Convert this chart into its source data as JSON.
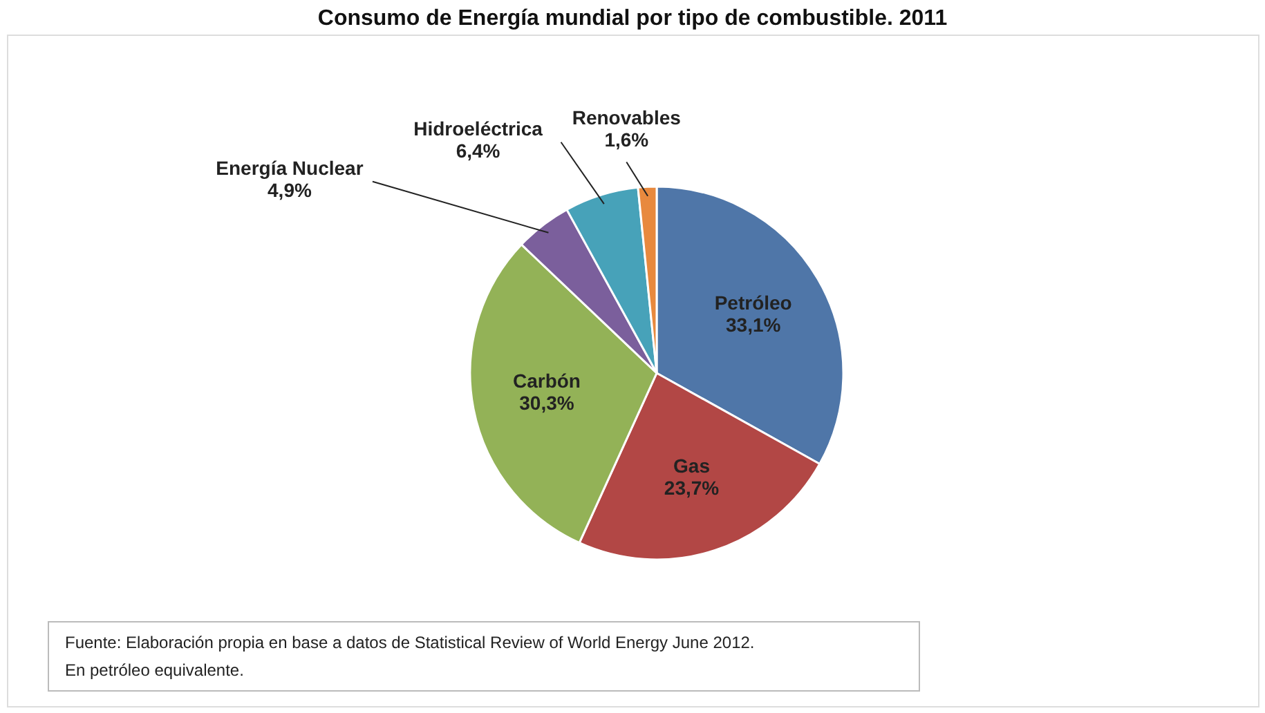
{
  "chart_data": {
    "type": "pie",
    "title": "Consumo de Energía mundial por tipo de combustible. 2011",
    "categories": [
      "Petróleo",
      "Gas",
      "Carbón",
      "Energía Nuclear",
      "Hidroeléctrica",
      "Renovables"
    ],
    "values": [
      33.1,
      23.7,
      30.3,
      4.9,
      6.4,
      1.6
    ],
    "colors": [
      "#4f76a8",
      "#b24745",
      "#93b257",
      "#7b5f9c",
      "#47a2b9",
      "#e8893e"
    ],
    "value_labels": [
      "33,1%",
      "23,7%",
      "30,3%",
      "4,9%",
      "6,4%",
      "1,6%"
    ],
    "legend": false,
    "annotations": [
      "Fuente: Elaboración propia en base a datos de Statistical Review of World Energy June 2012.",
      "En petróleo equivalente."
    ]
  }
}
